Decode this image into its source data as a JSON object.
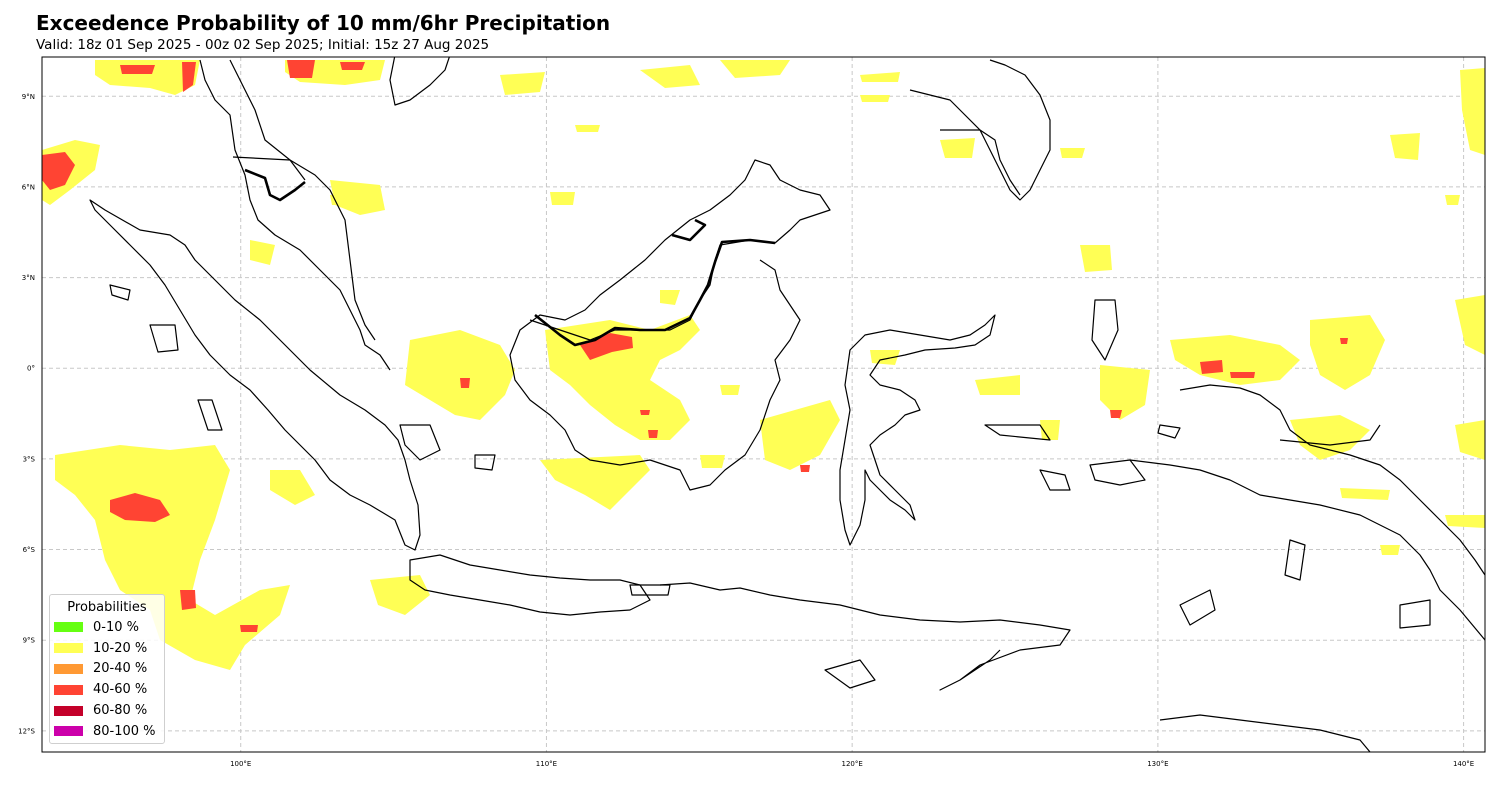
{
  "title": "Exceedence Probability of 10 mm/6hr Precipitation",
  "subtitle": "Valid: 18z 01 Sep 2025 - 00z 02 Sep 2025; Initial: 15z 27 Aug 2025",
  "map": {
    "lon_range": [
      93.5,
      140.7
    ],
    "lat_range": [
      -12.7,
      10.3
    ],
    "lon_ticks": [
      {
        "value": 100,
        "label": "100°E"
      },
      {
        "value": 110,
        "label": "110°E"
      },
      {
        "value": 120,
        "label": "120°E"
      },
      {
        "value": 130,
        "label": "130°E"
      },
      {
        "value": 140,
        "label": "140°E"
      }
    ],
    "lat_ticks": [
      {
        "value": 9,
        "label": "9°N"
      },
      {
        "value": 6,
        "label": "6°N"
      },
      {
        "value": 3,
        "label": "3°N"
      },
      {
        "value": 0,
        "label": "0°"
      },
      {
        "value": -3,
        "label": "3°S"
      },
      {
        "value": -6,
        "label": "6°S"
      },
      {
        "value": -9,
        "label": "9°S"
      },
      {
        "value": -12,
        "label": "12°S"
      }
    ],
    "gridlines": true,
    "land_color": "#ffffff",
    "coast_color": "#000000"
  },
  "legend": {
    "title": "Probabilities",
    "placement": "lower-left",
    "items": [
      {
        "label": "0-10 %",
        "color": "#66ff11"
      },
      {
        "label": "10-20 %",
        "color": "#ffff55"
      },
      {
        "label": "20-40 %",
        "color": "#ff9933"
      },
      {
        "label": "40-60 %",
        "color": "#ff4433"
      },
      {
        "label": "60-80 %",
        "color": "#c4002a"
      },
      {
        "label": "80-100 %",
        "color": "#cc00aa"
      }
    ]
  }
}
